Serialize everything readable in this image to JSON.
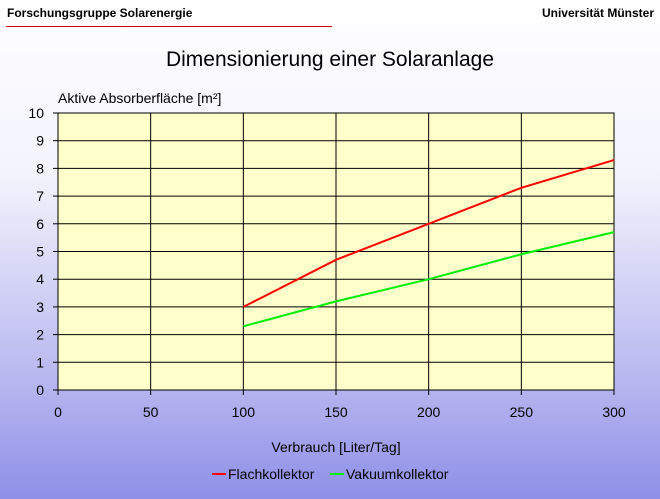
{
  "header": {
    "left": "Forschungsgruppe Solarenergie",
    "right": "Universität Münster"
  },
  "colors": {
    "plot_bg": "#ffffcc",
    "grid": "#000000",
    "accent_line": "#cc0000"
  },
  "chart_data": {
    "type": "line",
    "title": "Dimensionierung einer Solaranlage",
    "ylabel": "Aktive Absorberfläche [m²]",
    "xlabel": "Verbrauch [Liter/Tag]",
    "xlim": [
      0,
      300
    ],
    "ylim": [
      0,
      10
    ],
    "xticks": [
      0,
      50,
      100,
      150,
      200,
      250,
      300
    ],
    "yticks": [
      0,
      1,
      2,
      3,
      4,
      5,
      6,
      7,
      8,
      9,
      10
    ],
    "grid": true,
    "legend_position": "bottom",
    "series": [
      {
        "name": "Flachkollektor",
        "color": "#ff0000",
        "x": [
          100,
          150,
          200,
          250,
          300
        ],
        "y": [
          3.0,
          4.7,
          6.0,
          7.3,
          8.3
        ]
      },
      {
        "name": "Vakuumkollektor",
        "color": "#00ee00",
        "x": [
          100,
          150,
          200,
          250,
          300
        ],
        "y": [
          2.3,
          3.2,
          4.0,
          4.9,
          5.7
        ]
      }
    ]
  }
}
